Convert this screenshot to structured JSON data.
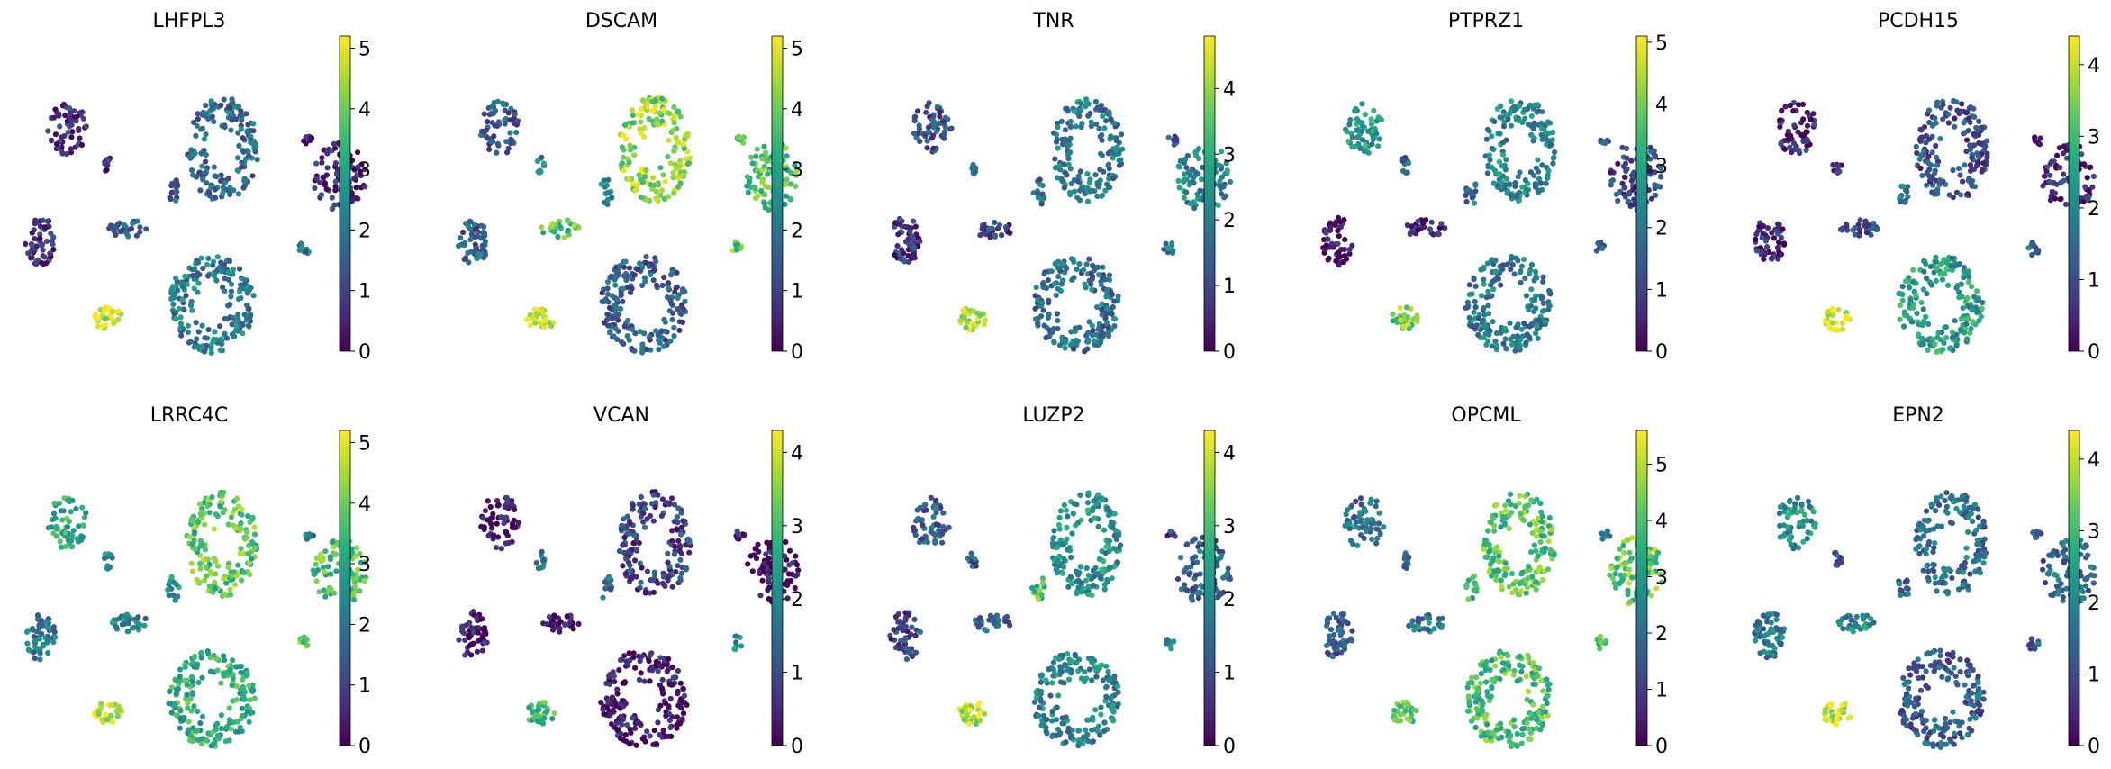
{
  "chart_data": [
    {
      "type": "scatter",
      "title": "LHFPL3",
      "colorbar": {
        "min": 0,
        "max": 5.2,
        "ticks": [
          "0",
          "1",
          "2",
          "3",
          "4",
          "5"
        ]
      }
    },
    {
      "type": "scatter",
      "title": "DSCAM",
      "colorbar": {
        "min": 0,
        "max": 5.2,
        "ticks": [
          "0",
          "1",
          "2",
          "3",
          "4",
          "5"
        ]
      }
    },
    {
      "type": "scatter",
      "title": "TNR",
      "colorbar": {
        "min": 0,
        "max": 4.8,
        "ticks": [
          "0",
          "1",
          "2",
          "3",
          "4"
        ]
      }
    },
    {
      "type": "scatter",
      "title": "PTPRZ1",
      "colorbar": {
        "min": 0,
        "max": 5.1,
        "ticks": [
          "0",
          "1",
          "2",
          "3",
          "4",
          "5"
        ]
      }
    },
    {
      "type": "scatter",
      "title": "PCDH15",
      "colorbar": {
        "min": 0,
        "max": 4.4,
        "ticks": [
          "0",
          "1",
          "2",
          "3",
          "4"
        ]
      }
    },
    {
      "type": "scatter",
      "title": "LRRC4C",
      "colorbar": {
        "min": 0,
        "max": 5.2,
        "ticks": [
          "0",
          "1",
          "2",
          "3",
          "4",
          "5"
        ]
      }
    },
    {
      "type": "scatter",
      "title": "VCAN",
      "colorbar": {
        "min": 0,
        "max": 4.3,
        "ticks": [
          "0",
          "1",
          "2",
          "3",
          "4"
        ]
      }
    },
    {
      "type": "scatter",
      "title": "LUZP2",
      "colorbar": {
        "min": 0,
        "max": 4.3,
        "ticks": [
          "0",
          "1",
          "2",
          "3",
          "4"
        ]
      }
    },
    {
      "type": "scatter",
      "title": "OPCML",
      "colorbar": {
        "min": 0,
        "max": 5.6,
        "ticks": [
          "0",
          "1",
          "2",
          "3",
          "4",
          "5"
        ]
      }
    },
    {
      "type": "scatter",
      "title": "EPN2",
      "colorbar": {
        "min": 0,
        "max": 4.4,
        "ticks": [
          "0",
          "1",
          "2",
          "3",
          "4"
        ]
      }
    }
  ]
}
